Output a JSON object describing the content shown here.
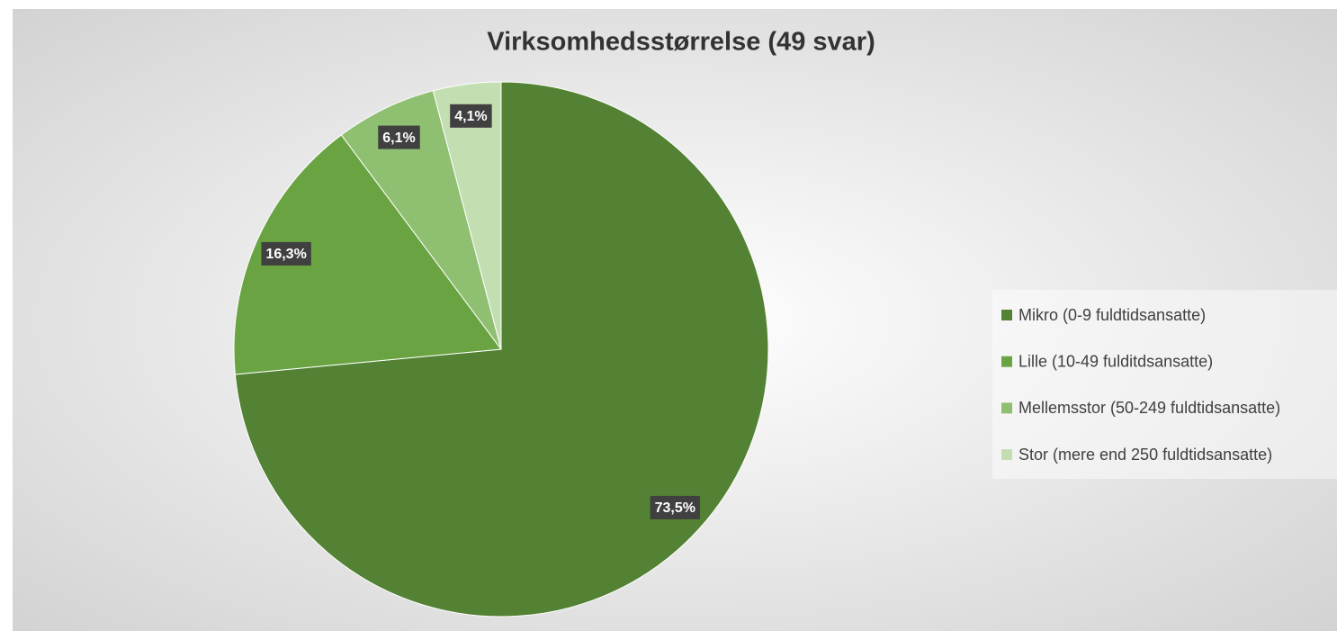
{
  "chart_data": {
    "type": "pie",
    "title": "Virksomhedsstørrelse (49 svar)",
    "categories": [
      "Mikro (0-9 fuldtidsansatte)",
      "Lille (10-49 fulditdsansatte)",
      "Mellemsstor (50-249 fuldtidsansatte)",
      "Stor (mere end 250 fuldtidsansatte)"
    ],
    "values": [
      73.5,
      16.3,
      6.1,
      4.1
    ],
    "value_labels": [
      "73,5%",
      "16,3%",
      "6,1%",
      "4,1%"
    ],
    "colors": [
      "#548235",
      "#6aa442",
      "#8fbf70",
      "#c3deb0"
    ],
    "legend": "right"
  }
}
